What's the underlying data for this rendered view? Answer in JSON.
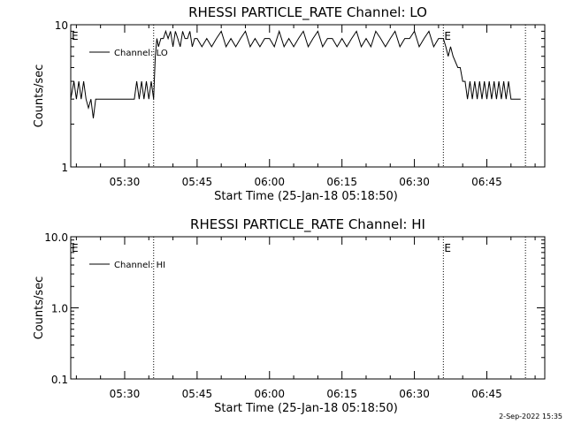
{
  "timestamp": "2-Sep-2022 15:35",
  "chart_data": [
    {
      "type": "line",
      "title": "RHESSI PARTICLE_RATE Channel: LO",
      "xlabel": "Start Time (25-Jan-18 05:18:50)",
      "ylabel": "Counts/sec",
      "yscale": "log",
      "ylim": [
        1,
        10
      ],
      "ytick_values": [
        1,
        10
      ],
      "ytick_labels": [
        "1",
        "10"
      ],
      "xlim": [
        "05:18:50",
        "06:57:00"
      ],
      "xtick_labels": [
        "05:30",
        "05:45",
        "06:00",
        "06:15",
        "06:30",
        "06:45"
      ],
      "xtick_times": [
        "05:30",
        "05:45",
        "06:00",
        "06:15",
        "06:30",
        "06:45"
      ],
      "vlines": [
        "05:36:00",
        "06:36:00",
        "06:53:00"
      ],
      "markers": [
        {
          "label": "E",
          "time": "05:18:50"
        },
        {
          "label": "E",
          "time": "06:36:00"
        }
      ],
      "legend": {
        "location": "upper-left",
        "entries": [
          "Channel: LO"
        ]
      },
      "series": [
        {
          "name": "Channel: LO",
          "x": [
            "05:18:50",
            "05:19:30",
            "05:20:00",
            "05:20:30",
            "05:21:00",
            "05:21:30",
            "05:22:00",
            "05:22:30",
            "05:23:00",
            "05:23:30",
            "05:24:00",
            "05:24:30",
            "05:25:00",
            "05:26:00",
            "05:28:00",
            "05:30:00",
            "05:32:00",
            "05:32:30",
            "05:33:00",
            "05:33:30",
            "05:34:00",
            "05:34:30",
            "05:35:00",
            "05:35:30",
            "05:36:00",
            "05:36:20",
            "05:36:40",
            "05:37:00",
            "05:37:30",
            "05:38:00",
            "05:38:30",
            "05:39:00",
            "05:39:30",
            "05:40:00",
            "05:40:30",
            "05:41:00",
            "05:41:30",
            "05:42:00",
            "05:42:30",
            "05:43:00",
            "05:43:30",
            "05:44:00",
            "05:44:30",
            "05:45:00",
            "05:46:00",
            "05:47:00",
            "05:48:00",
            "05:49:00",
            "05:50:00",
            "05:51:00",
            "05:52:00",
            "05:53:00",
            "05:54:00",
            "05:55:00",
            "05:56:00",
            "05:57:00",
            "05:58:00",
            "05:59:00",
            "06:00:00",
            "06:01:00",
            "06:02:00",
            "06:03:00",
            "06:04:00",
            "06:05:00",
            "06:06:00",
            "06:07:00",
            "06:08:00",
            "06:09:00",
            "06:10:00",
            "06:11:00",
            "06:12:00",
            "06:13:00",
            "06:14:00",
            "06:15:00",
            "06:16:00",
            "06:17:00",
            "06:18:00",
            "06:19:00",
            "06:20:00",
            "06:21:00",
            "06:22:00",
            "06:23:00",
            "06:24:00",
            "06:25:00",
            "06:26:00",
            "06:27:00",
            "06:28:00",
            "06:29:00",
            "06:30:00",
            "06:31:00",
            "06:32:00",
            "06:33:00",
            "06:34:00",
            "06:35:00",
            "06:36:00",
            "06:36:30",
            "06:37:00",
            "06:37:30",
            "06:38:00",
            "06:39:00",
            "06:39:30",
            "06:40:00",
            "06:40:30",
            "06:41:00",
            "06:41:30",
            "06:42:00",
            "06:42:30",
            "06:43:00",
            "06:43:30",
            "06:44:00",
            "06:44:30",
            "06:45:00",
            "06:45:30",
            "06:46:00",
            "06:46:30",
            "06:47:00",
            "06:47:30",
            "06:48:00",
            "06:48:30",
            "06:49:00",
            "06:49:30",
            "06:50:00",
            "06:50:30",
            "06:51:00",
            "06:51:30",
            "06:52:00"
          ],
          "y": [
            3,
            4,
            3,
            4,
            3,
            4,
            3,
            2.6,
            3,
            2.2,
            3,
            3,
            3,
            3,
            3,
            3,
            3,
            4,
            3,
            4,
            3,
            4,
            3,
            4,
            3,
            6,
            8,
            7,
            8,
            8,
            9,
            8,
            9,
            7,
            9,
            8,
            7,
            9,
            8,
            8,
            9,
            7,
            8,
            8,
            7,
            8,
            7,
            8,
            9,
            7,
            8,
            7,
            8,
            9,
            7,
            8,
            7,
            8,
            8,
            7,
            9,
            7,
            8,
            7,
            8,
            9,
            7,
            8,
            9,
            7,
            8,
            8,
            7,
            8,
            7,
            8,
            9,
            7,
            8,
            7,
            9,
            8,
            7,
            8,
            9,
            7,
            8,
            8,
            9,
            7,
            8,
            9,
            7,
            8,
            8,
            7,
            6,
            7,
            6,
            5,
            5,
            4,
            4,
            3,
            4,
            3,
            4,
            3,
            4,
            3,
            4,
            3,
            4,
            3,
            4,
            3,
            4,
            3,
            4,
            3,
            4,
            3,
            3,
            3,
            3,
            3
          ]
        }
      ]
    },
    {
      "type": "line",
      "title": "RHESSI PARTICLE_RATE Channel: HI",
      "xlabel": "Start Time (25-Jan-18 05:18:50)",
      "ylabel": "Counts/sec",
      "yscale": "log",
      "ylim": [
        0.1,
        10
      ],
      "ytick_values": [
        0.1,
        1,
        10
      ],
      "ytick_labels": [
        "0.1",
        "1.0",
        "10.0"
      ],
      "xlim": [
        "05:18:50",
        "06:57:00"
      ],
      "xtick_labels": [
        "05:30",
        "05:45",
        "06:00",
        "06:15",
        "06:30",
        "06:45"
      ],
      "xtick_times": [
        "05:30",
        "05:45",
        "06:00",
        "06:15",
        "06:30",
        "06:45"
      ],
      "vlines": [
        "05:36:00",
        "06:36:00",
        "06:53:00"
      ],
      "markers": [
        {
          "label": "E",
          "time": "05:18:50"
        },
        {
          "label": "E",
          "time": "06:36:00"
        }
      ],
      "legend": {
        "location": "upper-left",
        "entries": [
          "Channel: HI"
        ]
      },
      "series": [
        {
          "name": "Channel: HI",
          "x": [],
          "y": []
        }
      ]
    }
  ]
}
